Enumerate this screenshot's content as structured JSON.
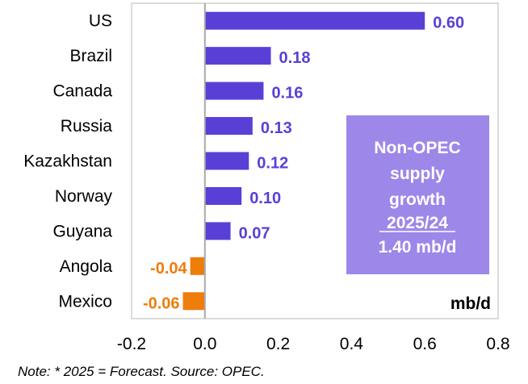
{
  "chart_data": {
    "type": "bar",
    "orientation": "horizontal",
    "categories": [
      "US",
      "Brazil",
      "Canada",
      "Russia",
      "Kazakhstan",
      "Norway",
      "Guyana",
      "Angola",
      "Mexico"
    ],
    "values": [
      0.6,
      0.18,
      0.16,
      0.13,
      0.12,
      0.1,
      0.07,
      -0.04,
      -0.06
    ],
    "data_labels": [
      "0.60",
      "0.18",
      "0.16",
      "0.13",
      "0.12",
      "0.10",
      "0.07",
      "-0.04",
      "-0.06"
    ],
    "xlim": [
      -0.2,
      0.8
    ],
    "xticks": [
      "-0.2",
      "0.0",
      "0.2",
      "0.4",
      "0.6",
      "0.8"
    ],
    "xtick_values": [
      -0.2,
      0.0,
      0.2,
      0.4,
      0.6,
      0.8
    ],
    "unit_label": "mb/d",
    "grid": false,
    "colors": {
      "positive": "#5a3fd6",
      "negative": "#ee7d0a",
      "box": "#9d87e8"
    },
    "annotation_box": {
      "lines": [
        "Non-OPEC",
        "supply",
        "growth",
        "2025/24",
        "1.40 mb/d"
      ]
    },
    "note": "Note: * 2025 = Forecast. Source: OPEC."
  }
}
